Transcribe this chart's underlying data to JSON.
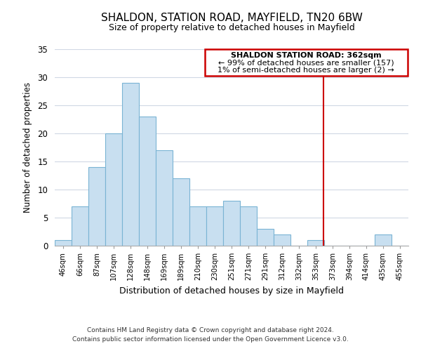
{
  "title": "SHALDON, STATION ROAD, MAYFIELD, TN20 6BW",
  "subtitle": "Size of property relative to detached houses in Mayfield",
  "xlabel": "Distribution of detached houses by size in Mayfield",
  "ylabel": "Number of detached properties",
  "bar_color": "#c8dff0",
  "bar_edge_color": "#7ab4d4",
  "bin_labels": [
    "46sqm",
    "66sqm",
    "87sqm",
    "107sqm",
    "128sqm",
    "148sqm",
    "169sqm",
    "189sqm",
    "210sqm",
    "230sqm",
    "251sqm",
    "271sqm",
    "291sqm",
    "312sqm",
    "332sqm",
    "353sqm",
    "373sqm",
    "394sqm",
    "414sqm",
    "435sqm",
    "455sqm"
  ],
  "bar_heights": [
    1,
    7,
    14,
    20,
    29,
    23,
    17,
    12,
    7,
    7,
    8,
    7,
    3,
    2,
    0,
    1,
    0,
    0,
    0,
    2,
    0
  ],
  "ylim": [
    0,
    35
  ],
  "yticks": [
    0,
    5,
    10,
    15,
    20,
    25,
    30,
    35
  ],
  "marker_color": "#cc0000",
  "annotation_title": "SHALDON STATION ROAD: 362sqm",
  "annotation_line1": "← 99% of detached houses are smaller (157)",
  "annotation_line2": "1% of semi-detached houses are larger (2) →",
  "footer_line1": "Contains HM Land Registry data © Crown copyright and database right 2024.",
  "footer_line2": "Contains public sector information licensed under the Open Government Licence v3.0.",
  "background_color": "#ffffff",
  "grid_color": "#d0d8e4"
}
